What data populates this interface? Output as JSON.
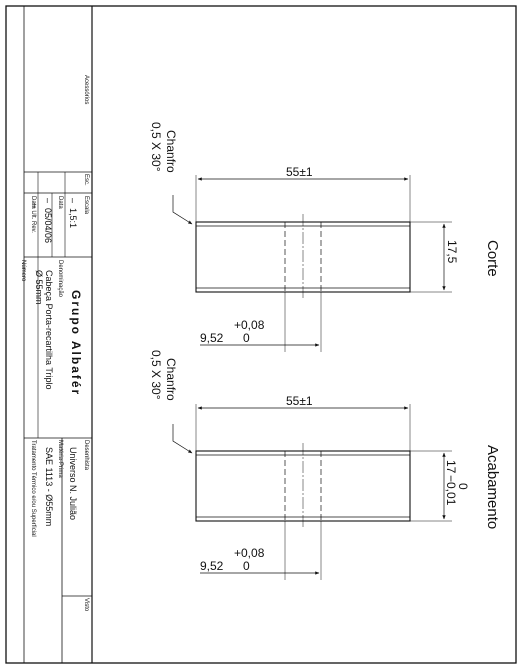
{
  "title_block": {
    "acessorios_label": "Acessórios",
    "escala_label": "Esc.",
    "escala_header": "Escala",
    "escala_value": "1,5:1",
    "data_label": "Data",
    "data_value": "05/04/06",
    "data_ult_rev_label": "Data Ult. Rev.",
    "dash1": "–",
    "dash2": "–",
    "dash3": "–",
    "company": "Grupo Albafér",
    "denominacao_label": "Denominação",
    "denominacao_value": "Cabeça Porta-recartilha Triplo",
    "denominacao_value2": "Ø 55mm",
    "numero_label": "Número",
    "desenhista_label": "Desenhista",
    "desenhista_value": "Universo N. Julião",
    "materia_prima_label": "Matéria-Prima",
    "materia_prima_value": "SAE 1113 - Ø55mm",
    "tratamento_label": "Tratamento Térmico e/ou Superficial",
    "visto_label": "Visto"
  },
  "views": {
    "corte": {
      "label": "Corte",
      "chamfer_line1": "Chanfro",
      "chamfer_line2": "0,5 X 30°",
      "length_dim": "55±1",
      "diameter_dim": "17,5",
      "bore_dim_main": "9,52",
      "bore_tol_upper": "+0,08",
      "bore_tol_lower": "0"
    },
    "acabamento": {
      "label": "Acabamento",
      "chamfer_line1": "Chanfro",
      "chamfer_line2": "0,5 X 30°",
      "length_dim": "55±1",
      "diameter_dim": "17",
      "diameter_tol_upper": "0",
      "diameter_tol_lower": "−0,01",
      "bore_dim_main": "9,52",
      "bore_tol_upper": "+0,08",
      "bore_tol_lower": "0"
    }
  }
}
